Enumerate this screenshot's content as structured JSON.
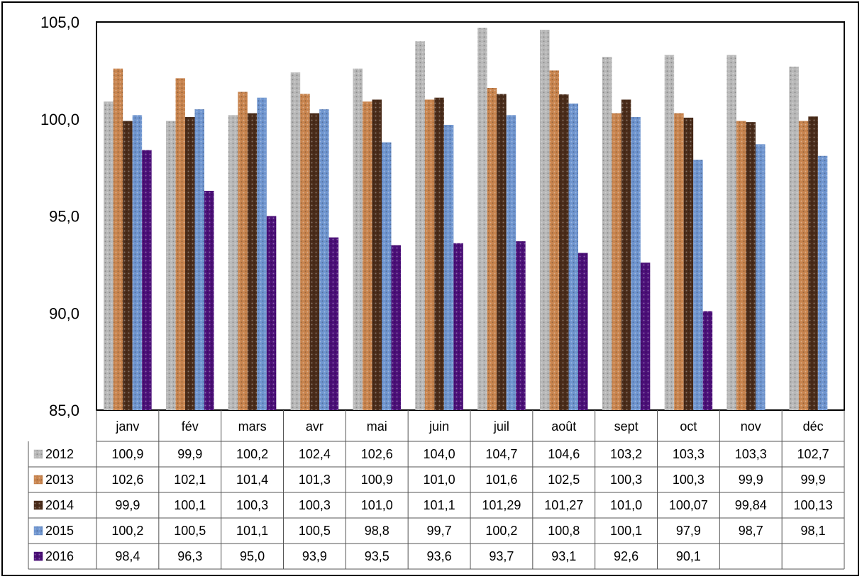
{
  "chart_data": {
    "type": "bar",
    "categories": [
      "janv",
      "fév",
      "mars",
      "avr",
      "mai",
      "juin",
      "juil",
      "août",
      "sept",
      "oct",
      "nov",
      "déc"
    ],
    "ylim": [
      85.0,
      105.0
    ],
    "yticks": [
      "105,0",
      "100,0",
      "95,0",
      "90,0",
      "85,0"
    ],
    "grid": false,
    "legend": "data-table-rows",
    "series": [
      {
        "name": "2012",
        "color": "#b8b8b8",
        "values": [
          100.9,
          99.9,
          100.2,
          102.4,
          102.6,
          104.0,
          104.7,
          104.6,
          103.2,
          103.3,
          103.3,
          102.7
        ],
        "labels": [
          "100,9",
          "99,9",
          "100,2",
          "102,4",
          "102,6",
          "104,0",
          "104,7",
          "104,6",
          "103,2",
          "103,3",
          "103,3",
          "102,7"
        ]
      },
      {
        "name": "2013",
        "color": "#c8844e",
        "values": [
          102.6,
          102.1,
          101.4,
          101.3,
          100.9,
          101.0,
          101.6,
          102.5,
          100.3,
          100.3,
          99.9,
          99.9
        ],
        "labels": [
          "102,6",
          "102,1",
          "101,4",
          "101,3",
          "100,9",
          "101,0",
          "101,6",
          "102,5",
          "100,3",
          "100,3",
          "99,9",
          "99,9"
        ]
      },
      {
        "name": "2014",
        "color": "#4a2c1a",
        "values": [
          99.9,
          100.1,
          100.3,
          100.3,
          101.0,
          101.1,
          101.29,
          101.27,
          101.0,
          100.07,
          99.84,
          100.13
        ],
        "labels": [
          "99,9",
          "100,1",
          "100,3",
          "100,3",
          "101,0",
          "101,1",
          "101,29",
          "101,27",
          "101,0",
          "100,07",
          "99,84",
          "100,13"
        ]
      },
      {
        "name": "2015",
        "color": "#6f95cf",
        "values": [
          100.2,
          100.5,
          101.1,
          100.5,
          98.8,
          99.7,
          100.2,
          100.8,
          100.1,
          97.9,
          98.7,
          98.1
        ],
        "labels": [
          "100,2",
          "100,5",
          "101,1",
          "100,5",
          "98,8",
          "99,7",
          "100,2",
          "100,8",
          "100,1",
          "97,9",
          "98,7",
          "98,1"
        ]
      },
      {
        "name": "2016",
        "color": "#4b0f78",
        "values": [
          98.4,
          96.3,
          95.0,
          93.9,
          93.5,
          93.6,
          93.7,
          93.1,
          92.6,
          90.1,
          null,
          null
        ],
        "labels": [
          "98,4",
          "96,3",
          "95,0",
          "93,9",
          "93,5",
          "93,6",
          "93,7",
          "93,1",
          "92,6",
          "90,1",
          "",
          ""
        ]
      }
    ]
  }
}
